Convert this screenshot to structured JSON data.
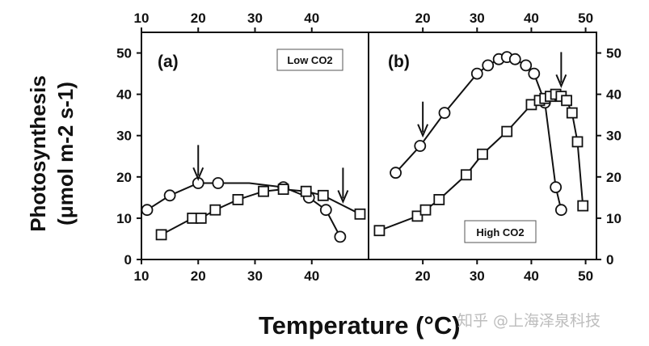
{
  "figure": {
    "ylabel_line1": "Photosynthesis",
    "ylabel_line2": "(μmol m-2 s-1)",
    "xlabel": "Temperature (°C)",
    "watermark": "知乎 @上海泽泉科技"
  },
  "chart_data": [
    {
      "type": "line",
      "panel_label": "(a)",
      "condition_label": "Low CO2",
      "xlim": [
        10,
        50
      ],
      "ylim": [
        0,
        55
      ],
      "xticks": [
        10,
        20,
        30,
        40
      ],
      "yticks": [
        0,
        10,
        20,
        30,
        40,
        50
      ],
      "annotations": [
        {
          "type": "arrow",
          "x": 20,
          "y_tip": 19.5
        },
        {
          "type": "arrow",
          "x": 45.5,
          "y_tip": 14
        }
      ],
      "series": [
        {
          "marker": "circle",
          "x": [
            11,
            15,
            20,
            23.5,
            35,
            39.5,
            42.5,
            45
          ],
          "y": [
            12,
            15.5,
            18.5,
            18.5,
            17.5,
            15,
            12,
            5.5
          ]
        },
        {
          "marker": "square",
          "x": [
            13.5,
            19,
            20.5,
            23,
            27,
            31.5,
            35,
            39,
            42,
            48.5
          ],
          "y": [
            6,
            10,
            10,
            12,
            14.5,
            16.5,
            17,
            16.5,
            15.5,
            11
          ]
        }
      ],
      "lines": [
        {
          "x": [
            11,
            15,
            20,
            23.5,
            29,
            35,
            39.5,
            42.5,
            45
          ],
          "y": [
            12,
            15.5,
            18.5,
            18.5,
            18.5,
            17.5,
            15,
            12,
            5.5
          ]
        },
        {
          "x": [
            13.5,
            19,
            20.5,
            23,
            27,
            31.5,
            35,
            39,
            42,
            48.5
          ],
          "y": [
            6,
            10,
            10,
            12,
            14.5,
            16.5,
            17,
            16.5,
            15.5,
            11
          ]
        }
      ]
    },
    {
      "type": "line",
      "panel_label": "(b)",
      "condition_label": "High CO2",
      "xlim": [
        10,
        52
      ],
      "ylim": [
        0,
        55
      ],
      "xticks": [
        20,
        30,
        40,
        50
      ],
      "yticks": [
        0,
        10,
        20,
        30,
        40,
        50
      ],
      "annotations": [
        {
          "type": "arrow",
          "x": 20,
          "y_tip": 30
        },
        {
          "type": "arrow",
          "x": 45.5,
          "y_tip": 42
        }
      ],
      "series": [
        {
          "marker": "circle",
          "x": [
            15,
            19.5,
            24,
            30,
            32,
            34,
            35.5,
            37,
            39,
            40.5,
            42.5,
            44.5,
            45.5
          ],
          "y": [
            21,
            27.5,
            35.5,
            45,
            47,
            48.5,
            49,
            48.5,
            47,
            45,
            38,
            17.5,
            12
          ]
        },
        {
          "marker": "square",
          "x": [
            12,
            19,
            20.5,
            23,
            28,
            31,
            35.5,
            40,
            41.5,
            42.5,
            43.5,
            44.5,
            45.5,
            46.5,
            47.5,
            48.5,
            49.5
          ],
          "y": [
            7,
            10.5,
            12,
            14.5,
            20.5,
            25.5,
            31,
            37.5,
            38.5,
            39,
            39.5,
            40,
            39.5,
            38.5,
            35.5,
            28.5,
            13
          ]
        }
      ]
    }
  ]
}
